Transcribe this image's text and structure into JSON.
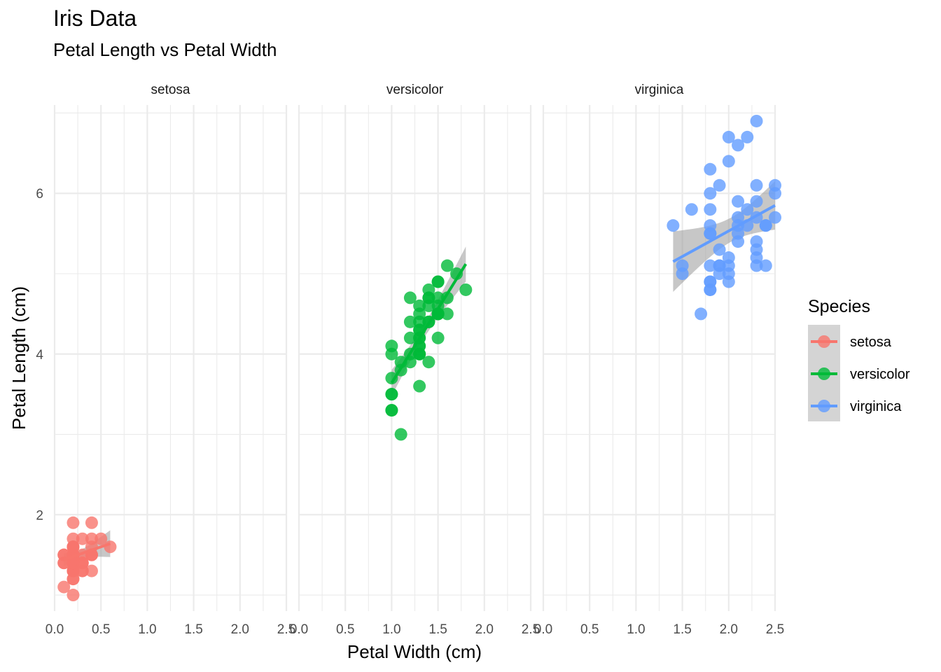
{
  "chart_data": {
    "type": "scatter",
    "title": "Iris Data",
    "subtitle": "Petal Length vs Petal Width",
    "xlabel": "Petal Width (cm)",
    "ylabel": "Petal Length (cm)",
    "xlim": [
      0,
      2.5
    ],
    "ylim": [
      0.8,
      7.1
    ],
    "x_ticks": [
      0.0,
      0.5,
      1.0,
      1.5,
      2.0,
      2.5
    ],
    "x_tick_labels": [
      "0.0",
      "0.5",
      "1.0",
      "1.5",
      "2.0",
      "2.5"
    ],
    "y_ticks": [
      2,
      4,
      6
    ],
    "y_tick_labels": [
      "2",
      "4",
      "6"
    ],
    "grid": true,
    "facet_by": "Species",
    "legend": {
      "title": "Species",
      "position": "right",
      "entries": [
        "setosa",
        "versicolor",
        "virginica"
      ]
    },
    "series": [
      {
        "name": "setosa",
        "color": "#F8766D",
        "points": [
          [
            0.2,
            1.4
          ],
          [
            0.2,
            1.4
          ],
          [
            0.2,
            1.3
          ],
          [
            0.2,
            1.5
          ],
          [
            0.2,
            1.4
          ],
          [
            0.4,
            1.7
          ],
          [
            0.3,
            1.4
          ],
          [
            0.2,
            1.5
          ],
          [
            0.2,
            1.4
          ],
          [
            0.1,
            1.5
          ],
          [
            0.2,
            1.5
          ],
          [
            0.2,
            1.6
          ],
          [
            0.1,
            1.4
          ],
          [
            0.1,
            1.1
          ],
          [
            0.2,
            1.2
          ],
          [
            0.4,
            1.5
          ],
          [
            0.4,
            1.3
          ],
          [
            0.3,
            1.4
          ],
          [
            0.3,
            1.7
          ],
          [
            0.3,
            1.5
          ],
          [
            0.2,
            1.7
          ],
          [
            0.4,
            1.5
          ],
          [
            0.2,
            1.0
          ],
          [
            0.5,
            1.7
          ],
          [
            0.2,
            1.9
          ],
          [
            0.2,
            1.6
          ],
          [
            0.4,
            1.6
          ],
          [
            0.2,
            1.5
          ],
          [
            0.2,
            1.4
          ],
          [
            0.2,
            1.6
          ],
          [
            0.2,
            1.6
          ],
          [
            0.4,
            1.5
          ],
          [
            0.1,
            1.5
          ],
          [
            0.2,
            1.4
          ],
          [
            0.2,
            1.5
          ],
          [
            0.2,
            1.2
          ],
          [
            0.2,
            1.3
          ],
          [
            0.1,
            1.4
          ],
          [
            0.2,
            1.3
          ],
          [
            0.2,
            1.5
          ],
          [
            0.3,
            1.3
          ],
          [
            0.3,
            1.3
          ],
          [
            0.2,
            1.3
          ],
          [
            0.6,
            1.6
          ],
          [
            0.4,
            1.9
          ],
          [
            0.3,
            1.4
          ],
          [
            0.2,
            1.6
          ],
          [
            0.2,
            1.4
          ],
          [
            0.2,
            1.5
          ],
          [
            0.2,
            1.4
          ]
        ],
        "trend": {
          "x": [
            0.1,
            0.6
          ],
          "y": [
            1.44,
            1.64
          ]
        }
      },
      {
        "name": "versicolor",
        "color": "#00BA38",
        "points": [
          [
            1.4,
            4.7
          ],
          [
            1.5,
            4.5
          ],
          [
            1.5,
            4.9
          ],
          [
            1.3,
            4.0
          ],
          [
            1.5,
            4.6
          ],
          [
            1.3,
            4.5
          ],
          [
            1.6,
            4.7
          ],
          [
            1.0,
            3.3
          ],
          [
            1.3,
            4.6
          ],
          [
            1.4,
            3.9
          ],
          [
            1.0,
            3.5
          ],
          [
            1.5,
            4.2
          ],
          [
            1.0,
            4.0
          ],
          [
            1.4,
            4.7
          ],
          [
            1.3,
            3.6
          ],
          [
            1.4,
            4.4
          ],
          [
            1.5,
            4.5
          ],
          [
            1.0,
            4.1
          ],
          [
            1.5,
            4.5
          ],
          [
            1.1,
            3.9
          ],
          [
            1.8,
            4.8
          ],
          [
            1.3,
            4.0
          ],
          [
            1.5,
            4.9
          ],
          [
            1.2,
            4.7
          ],
          [
            1.3,
            4.3
          ],
          [
            1.4,
            4.4
          ],
          [
            1.4,
            4.8
          ],
          [
            1.7,
            5.0
          ],
          [
            1.5,
            4.5
          ],
          [
            1.0,
            3.5
          ],
          [
            1.1,
            3.8
          ],
          [
            1.0,
            3.7
          ],
          [
            1.2,
            3.9
          ],
          [
            1.6,
            5.1
          ],
          [
            1.5,
            4.5
          ],
          [
            1.6,
            4.5
          ],
          [
            1.5,
            4.7
          ],
          [
            1.3,
            4.4
          ],
          [
            1.3,
            4.1
          ],
          [
            1.3,
            4.0
          ],
          [
            1.2,
            4.4
          ],
          [
            1.4,
            4.6
          ],
          [
            1.2,
            4.0
          ],
          [
            1.0,
            3.3
          ],
          [
            1.3,
            4.2
          ],
          [
            1.2,
            4.2
          ],
          [
            1.3,
            4.2
          ],
          [
            1.3,
            4.3
          ],
          [
            1.1,
            3.0
          ],
          [
            1.3,
            4.1
          ]
        ],
        "trend": {
          "x": [
            1.0,
            1.8
          ],
          "y": [
            3.64,
            5.12
          ]
        }
      },
      {
        "name": "virginica",
        "color": "#619CFF",
        "points": [
          [
            2.5,
            6.0
          ],
          [
            1.9,
            5.1
          ],
          [
            2.1,
            5.9
          ],
          [
            1.8,
            5.6
          ],
          [
            2.2,
            5.8
          ],
          [
            2.1,
            6.6
          ],
          [
            1.7,
            4.5
          ],
          [
            1.8,
            6.3
          ],
          [
            1.8,
            5.8
          ],
          [
            2.5,
            6.1
          ],
          [
            2.0,
            5.1
          ],
          [
            1.9,
            5.3
          ],
          [
            2.1,
            5.5
          ],
          [
            2.0,
            5.0
          ],
          [
            2.4,
            5.1
          ],
          [
            2.3,
            5.3
          ],
          [
            1.8,
            5.5
          ],
          [
            2.2,
            6.7
          ],
          [
            2.3,
            6.9
          ],
          [
            1.5,
            5.0
          ],
          [
            2.3,
            5.7
          ],
          [
            2.0,
            4.9
          ],
          [
            2.0,
            6.7
          ],
          [
            1.8,
            4.9
          ],
          [
            2.1,
            5.7
          ],
          [
            1.8,
            6.0
          ],
          [
            1.8,
            4.8
          ],
          [
            1.8,
            4.9
          ],
          [
            2.1,
            5.6
          ],
          [
            1.6,
            5.8
          ],
          [
            1.9,
            6.1
          ],
          [
            2.0,
            6.4
          ],
          [
            2.2,
            5.6
          ],
          [
            1.5,
            5.1
          ],
          [
            1.4,
            5.6
          ],
          [
            2.3,
            6.1
          ],
          [
            2.4,
            5.6
          ],
          [
            1.8,
            5.5
          ],
          [
            1.8,
            4.8
          ],
          [
            2.1,
            5.4
          ],
          [
            2.4,
            5.6
          ],
          [
            2.3,
            5.1
          ],
          [
            1.9,
            5.1
          ],
          [
            2.3,
            5.9
          ],
          [
            2.5,
            5.7
          ],
          [
            2.3,
            5.2
          ],
          [
            1.9,
            5.0
          ],
          [
            2.0,
            5.2
          ],
          [
            2.3,
            5.4
          ],
          [
            1.8,
            5.1
          ]
        ],
        "trend": {
          "x": [
            1.4,
            2.5
          ],
          "y": [
            5.15,
            5.85
          ]
        }
      }
    ]
  }
}
